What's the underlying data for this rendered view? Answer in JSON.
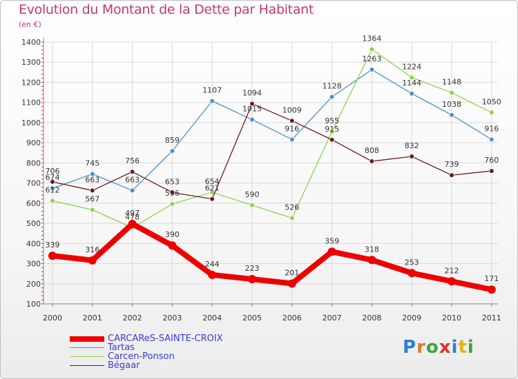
{
  "title": "Evolution du Montant de la Dette par Habitant",
  "subtitle": "(en €)",
  "logo_text": "Proxiti",
  "colors": {
    "title": "#c2377a",
    "grid": "#d9d9d9",
    "legend_text": "#3a3ad8"
  },
  "chart_data": {
    "type": "line",
    "x": [
      "2000",
      "2001",
      "2002",
      "2003",
      "2004",
      "2005",
      "2006",
      "2007",
      "2008",
      "2009",
      "2010",
      "2011"
    ],
    "ylim": [
      100,
      1400
    ],
    "yticks": [
      100,
      200,
      300,
      400,
      500,
      600,
      700,
      800,
      900,
      1000,
      1100,
      1200,
      1300,
      1400
    ],
    "grid": true,
    "legend_position": "bottom-left",
    "series": [
      {
        "name": "CARCAReS-SAINTE-CROIX",
        "color": "#ee0000",
        "thick": true,
        "values": [
          339,
          316,
          497,
          390,
          244,
          223,
          201,
          359,
          318,
          253,
          212,
          171
        ],
        "label_dy": [
          -12,
          -12,
          -12,
          -12,
          -12,
          -12,
          -12,
          -12,
          -12,
          -12,
          -12,
          -12
        ]
      },
      {
        "name": "Tartas",
        "color": "#4a90c8",
        "thick": false,
        "values": [
          674,
          745,
          663,
          859,
          1107,
          1015,
          916,
          1128,
          1263,
          1144,
          1038,
          916
        ],
        "label_dy": [
          -12,
          -12,
          -12,
          -12,
          -12,
          -12,
          -12,
          -12,
          -12,
          -12,
          -12,
          -12
        ]
      },
      {
        "name": "Carcen-Ponson",
        "color": "#8fd14f",
        "thick": false,
        "values": [
          612,
          567,
          478,
          596,
          654,
          590,
          526,
          955,
          1364,
          1224,
          1148,
          1050
        ],
        "label_dy": [
          -12,
          -12,
          -12,
          -12,
          -12,
          -12,
          -12,
          -12,
          -12,
          -12,
          -12,
          -12
        ]
      },
      {
        "name": "Bégaar",
        "color": "#6b1a1a",
        "thick": false,
        "values": [
          706,
          663,
          756,
          653,
          621,
          1094,
          1009,
          915,
          808,
          832,
          739,
          760
        ],
        "label_dy": [
          -12,
          -12,
          -12,
          -12,
          -12,
          -12,
          -12,
          -12,
          -12,
          -12,
          -12,
          -12
        ]
      }
    ]
  }
}
